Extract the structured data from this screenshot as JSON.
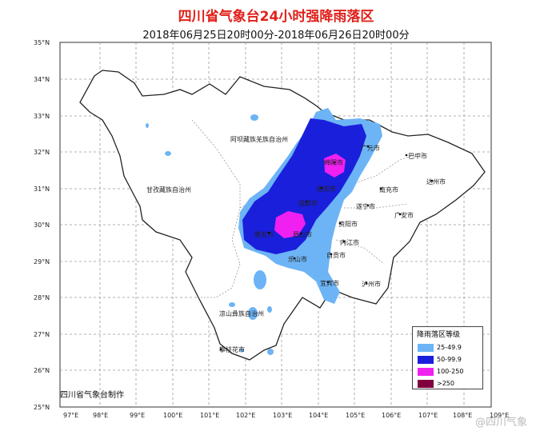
{
  "title": "四川省气象台24小时强降雨落区",
  "subtitle": "2018年06月25日20时00分-2018年06月26日20时00分",
  "lat_labels": [
    "35°N",
    "34°N",
    "33°N",
    "32°N",
    "31°N",
    "30°N",
    "29°N",
    "28°N",
    "27°N",
    "26°N",
    "25°N"
  ],
  "lon_labels": [
    "97°E",
    "98°E",
    "99°E",
    "100°E",
    "101°E",
    "102°E",
    "103°E",
    "104°E",
    "105°E",
    "106°E",
    "107°E",
    "108°E",
    "109°E"
  ],
  "places": {
    "aba": "阿坝藏族羌族自治州",
    "ganzi": "甘孜藏族自治州",
    "liangshan": "凉山彝族自治州",
    "panzhihua": "攀枝花市",
    "guangyuan": "广元市",
    "bazhong": "巴中市",
    "mianyang": "绵阳市",
    "dazhou": "达州市",
    "nanchong": "南充市",
    "deyang": "德阳市",
    "chengdu": "成都市",
    "suining": "遂宁市",
    "guangan": "广安市",
    "ziyang": "资阳市",
    "yaan": "雅安市",
    "meishan": "眉山市",
    "neijiang": "内江市",
    "leshan": "乐山市",
    "zigong": "自贡市",
    "yibin": "宜宾市",
    "luzhou": "泸州市"
  },
  "legend": {
    "title": "降雨落区等级",
    "items": [
      {
        "label": "25-49.9",
        "color": "#6cb4f5"
      },
      {
        "label": "50-99.9",
        "color": "#1a1fdc"
      },
      {
        "label": "100-250",
        "color": "#f020f0"
      },
      {
        "label": ">250",
        "color": "#800040"
      }
    ]
  },
  "credit": "四川省气象台制作",
  "watermark": "@四川气象"
}
